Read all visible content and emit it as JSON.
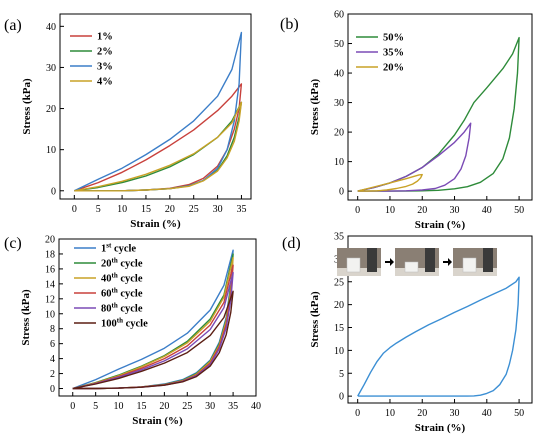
{
  "chart_data": [
    {
      "panel": "(a)",
      "type": "line",
      "xlabel": "Strain (%)",
      "ylabel": "Stress (kPa)",
      "xlim": [
        -3,
        37
      ],
      "ylim": [
        -2,
        43
      ],
      "xticks": [
        0,
        5,
        10,
        15,
        20,
        25,
        30,
        35
      ],
      "yticks": [
        0,
        10,
        20,
        30,
        40
      ],
      "legend_position": "top-left",
      "series": [
        {
          "name": "1%",
          "color": "#c8413c",
          "x": [
            0,
            5,
            10,
            15,
            20,
            25,
            30,
            33,
            35,
            35,
            34.5,
            33.5,
            32,
            30,
            27,
            24,
            20,
            15,
            10,
            5,
            0
          ],
          "y": [
            0,
            2,
            4.5,
            7.5,
            11,
            14.8,
            19.5,
            23,
            26,
            26,
            20,
            15,
            10,
            6,
            3,
            1.5,
            0.6,
            0.2,
            0,
            0,
            0
          ]
        },
        {
          "name": "2%",
          "color": "#2e8b3a",
          "x": [
            0,
            5,
            10,
            15,
            20,
            25,
            30,
            33,
            35,
            34.5,
            33.5,
            32,
            30,
            27,
            24,
            20,
            15,
            10,
            5,
            0
          ],
          "y": [
            0,
            0.8,
            2,
            3.6,
            5.8,
            8.8,
            13,
            17,
            21.5,
            18,
            13,
            8.5,
            5,
            2.5,
            1.2,
            0.5,
            0.2,
            0,
            0,
            0
          ]
        },
        {
          "name": "3%",
          "color": "#3c7ec8",
          "x": [
            0,
            5,
            10,
            15,
            20,
            25,
            30,
            33,
            35,
            34.5,
            33.5,
            32,
            30,
            27,
            24,
            20,
            15,
            10,
            5,
            0
          ],
          "y": [
            0,
            2.8,
            5.5,
            8.8,
            12.5,
            17,
            23,
            29.5,
            38.5,
            26,
            17,
            10,
            5.5,
            2.5,
            1.2,
            0.5,
            0.2,
            0,
            0,
            0
          ]
        },
        {
          "name": "4%",
          "color": "#c9a227",
          "x": [
            0,
            5,
            10,
            15,
            20,
            25,
            30,
            33,
            35,
            34.5,
            33.5,
            32,
            30,
            27,
            24,
            20,
            15,
            10,
            5,
            0
          ],
          "y": [
            0,
            1,
            2.3,
            4,
            6.2,
            9,
            13,
            16.5,
            21.5,
            17,
            12,
            8,
            4.8,
            2.4,
            1.1,
            0.5,
            0.2,
            0,
            0,
            0
          ]
        }
      ]
    },
    {
      "panel": "(b)",
      "type": "line",
      "xlabel": "Strain (%)",
      "ylabel": "Stress (kPa)",
      "xlim": [
        -3,
        54
      ],
      "ylim": [
        -3,
        60
      ],
      "xticks": [
        0,
        10,
        20,
        30,
        40,
        50
      ],
      "yticks": [
        0,
        10,
        20,
        30,
        40,
        50,
        60
      ],
      "legend_position": "top-left",
      "series": [
        {
          "name": "50%",
          "color": "#2e8b3a",
          "x": [
            0,
            5,
            10,
            15,
            20,
            25,
            30,
            33,
            36,
            40,
            45,
            48,
            50,
            49.5,
            48.5,
            47,
            45,
            42,
            38,
            34,
            30,
            25,
            20,
            15,
            10,
            5,
            0
          ],
          "y": [
            0,
            1.2,
            2.8,
            5,
            8,
            12.5,
            19,
            24,
            30,
            35,
            41.5,
            46.5,
            52,
            40,
            28,
            18,
            11,
            6,
            3,
            1.5,
            0.8,
            0.3,
            0.1,
            0,
            0,
            0,
            0
          ]
        },
        {
          "name": "35%",
          "color": "#7b4bb5",
          "x": [
            0,
            5,
            10,
            15,
            20,
            25,
            30,
            33,
            35,
            34.5,
            33.5,
            32,
            30,
            27,
            24,
            20,
            15,
            10,
            5,
            0
          ],
          "y": [
            0,
            1.2,
            2.8,
            5,
            8,
            12,
            16.5,
            20,
            23,
            18,
            12,
            7.5,
            4.2,
            2,
            0.9,
            0.4,
            0.1,
            0,
            0,
            0
          ]
        },
        {
          "name": "20%",
          "color": "#c9a227",
          "x": [
            0,
            5,
            10,
            15,
            19,
            20,
            19.5,
            18.5,
            17,
            15,
            12,
            9,
            6,
            3,
            0
          ],
          "y": [
            0,
            1.4,
            2.8,
            4.2,
            5.5,
            5.6,
            4.5,
            3.4,
            2.4,
            1.6,
            0.9,
            0.4,
            0.1,
            0,
            0
          ]
        }
      ]
    },
    {
      "panel": "(c)",
      "type": "line",
      "xlabel": "Strain (%)",
      "ylabel": "Stress (kPa)",
      "xlim": [
        -3,
        40
      ],
      "ylim": [
        -1,
        20
      ],
      "xticks": [
        0,
        5,
        10,
        15,
        20,
        25,
        30,
        35,
        40
      ],
      "yticks": [
        0,
        2,
        4,
        6,
        8,
        10,
        12,
        14,
        16,
        18,
        20
      ],
      "legend_position": "top-left",
      "series": [
        {
          "name": "1",
          "name_suffix": "st",
          "name_rest": " cycle",
          "color": "#3c7ec8",
          "x": [
            0,
            5,
            10,
            15,
            20,
            25,
            30,
            33,
            35,
            34.5,
            33.5,
            32,
            30,
            27,
            24,
            20,
            15,
            10,
            5,
            0
          ],
          "y": [
            0,
            1.2,
            2.6,
            3.9,
            5.4,
            7.4,
            10.5,
            13.8,
            18.5,
            14,
            9.5,
            6.2,
            3.8,
            2.1,
            1.2,
            0.6,
            0.2,
            0.05,
            0,
            0
          ]
        },
        {
          "name": "20",
          "name_suffix": "th",
          "name_rest": " cycle",
          "color": "#2e8b3a",
          "x": [
            0,
            5,
            10,
            15,
            20,
            25,
            30,
            33,
            35,
            34.5,
            33.5,
            32,
            30,
            27,
            24,
            20,
            15,
            10,
            5,
            0
          ],
          "y": [
            0,
            0.8,
            1.8,
            3,
            4.4,
            6.3,
            9.3,
            12.5,
            18,
            13.6,
            9.2,
            6,
            3.7,
            2,
            1.1,
            0.55,
            0.2,
            0.05,
            0,
            0
          ]
        },
        {
          "name": "40",
          "name_suffix": "th",
          "name_rest": " cycle",
          "color": "#c9a227",
          "x": [
            0,
            5,
            10,
            15,
            20,
            25,
            30,
            33,
            35,
            34.5,
            33.5,
            32,
            30,
            27,
            24,
            20,
            15,
            10,
            5,
            0
          ],
          "y": [
            0,
            0.75,
            1.7,
            2.9,
            4.3,
            6.1,
            9,
            12.2,
            17.5,
            13.2,
            9,
            5.8,
            3.6,
            1.9,
            1.05,
            0.5,
            0.2,
            0.05,
            0,
            0
          ]
        },
        {
          "name": "60",
          "name_suffix": "th",
          "name_rest": " cycle",
          "color": "#c8413c",
          "x": [
            0,
            5,
            10,
            15,
            20,
            25,
            30,
            33,
            35,
            34.5,
            33.5,
            32,
            30,
            27,
            24,
            20,
            15,
            10,
            5,
            0
          ],
          "y": [
            0,
            0.7,
            1.6,
            2.7,
            4,
            5.7,
            8.5,
            11.5,
            16.5,
            12.6,
            8.6,
            5.6,
            3.4,
            1.8,
            1,
            0.5,
            0.2,
            0.05,
            0,
            0
          ]
        },
        {
          "name": "80",
          "name_suffix": "th",
          "name_rest": " cycle",
          "color": "#7b4bb5",
          "x": [
            0,
            5,
            10,
            15,
            20,
            25,
            30,
            33,
            35,
            34.5,
            33.5,
            32,
            30,
            27,
            24,
            20,
            15,
            10,
            5,
            0
          ],
          "y": [
            0,
            0.65,
            1.5,
            2.5,
            3.7,
            5.3,
            7.9,
            10.8,
            15.5,
            11.8,
            8.1,
            5.3,
            3.2,
            1.7,
            0.95,
            0.45,
            0.18,
            0.05,
            0,
            0
          ]
        },
        {
          "name": "100",
          "name_suffix": "th",
          "name_rest": " cycle",
          "color": "#5c1f14",
          "x": [
            0,
            5,
            10,
            15,
            20,
            25,
            30,
            33,
            35,
            34.5,
            33.5,
            32,
            30,
            27,
            24,
            20,
            15,
            10,
            5,
            0
          ],
          "y": [
            0,
            0.6,
            1.35,
            2.3,
            3.4,
            4.8,
            7.1,
            9.5,
            13,
            10.2,
            7.2,
            4.8,
            3,
            1.6,
            0.9,
            0.45,
            0.18,
            0.05,
            0,
            0
          ]
        }
      ]
    },
    {
      "panel": "(d)",
      "type": "line",
      "xlabel": "Strain (%)",
      "ylabel": "Stress (kPa)",
      "xlim": [
        -3,
        54
      ],
      "ylim": [
        -1.5,
        35
      ],
      "xticks": [
        0,
        10,
        20,
        30,
        40,
        50
      ],
      "yticks": [
        0,
        5,
        10,
        15,
        20,
        25,
        30,
        35
      ],
      "inset": "three photos of a white cube sample being compressed, separated by arrows",
      "series": [
        {
          "name": "",
          "color": "#3c8fd4",
          "x": [
            0,
            2,
            4,
            6,
            8,
            10,
            12,
            15,
            18,
            22,
            26,
            30,
            34,
            38,
            42,
            46,
            49,
            50,
            49.7,
            49,
            48,
            47,
            46,
            44,
            42,
            40,
            38,
            36,
            34,
            30,
            20,
            10,
            1,
            0
          ],
          "y": [
            0,
            2.5,
            5.2,
            7.6,
            9.4,
            10.6,
            11.6,
            12.9,
            14.1,
            15.6,
            16.9,
            18.3,
            19.6,
            21,
            22.3,
            23.6,
            25,
            26,
            20,
            14.5,
            10,
            7,
            4.8,
            2.5,
            1.2,
            0.6,
            0.2,
            0.05,
            0,
            0,
            0,
            0,
            0,
            0
          ]
        }
      ]
    }
  ]
}
